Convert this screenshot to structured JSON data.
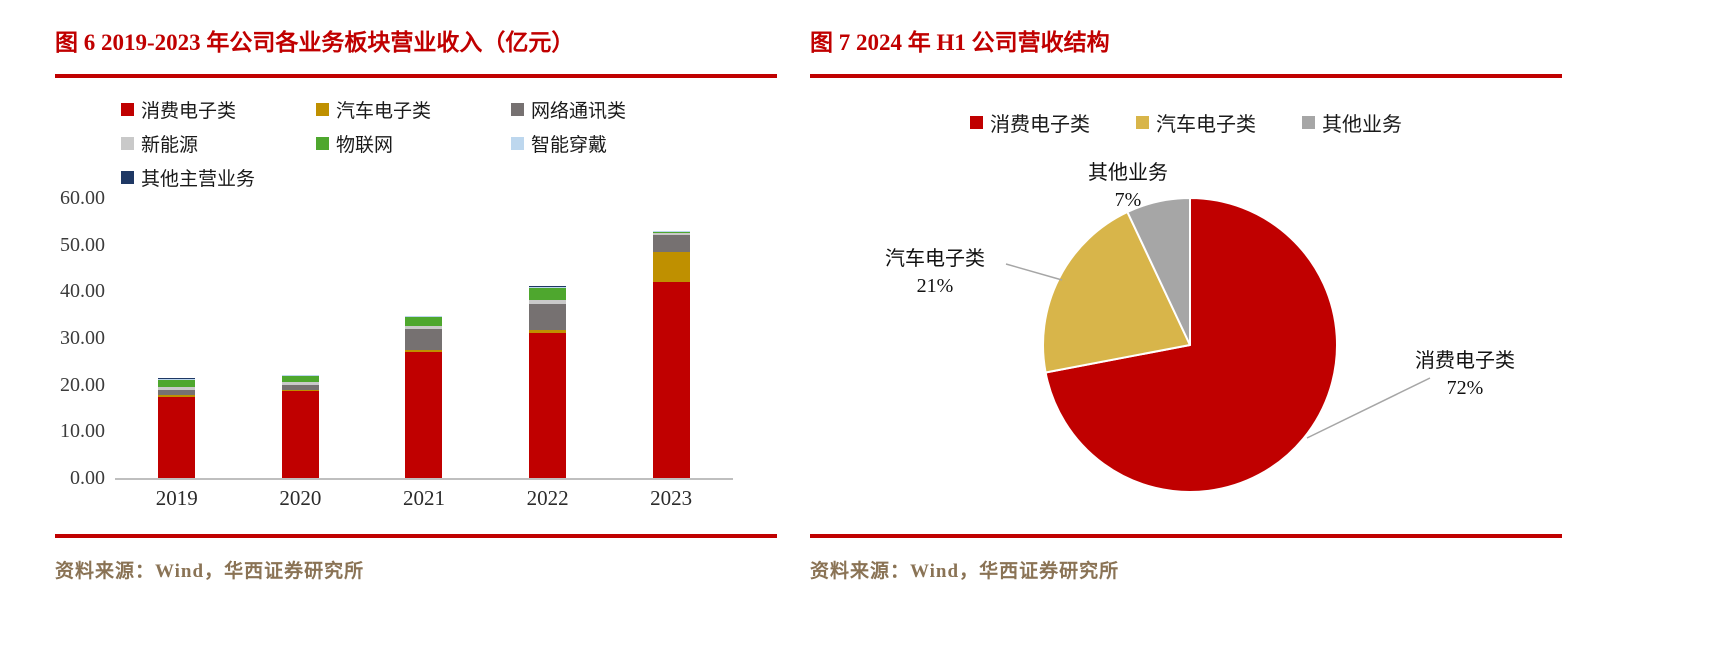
{
  "chart_data": [
    {
      "id": "fig6",
      "type": "bar",
      "stacked": true,
      "title": "图 6 2019-2023 年公司各业务板块营业收入（亿元）",
      "categories": [
        "2019",
        "2020",
        "2021",
        "2022",
        "2023"
      ],
      "series": [
        {
          "name": "消费电子类",
          "color": "#C00000",
          "values": [
            17.4,
            18.6,
            27.0,
            31.0,
            42.0
          ]
        },
        {
          "name": "汽车电子类",
          "color": "#BF9000",
          "values": [
            0.3,
            0.3,
            0.4,
            0.8,
            6.5
          ]
        },
        {
          "name": "网络通讯类",
          "color": "#767171",
          "values": [
            1.2,
            1.1,
            4.6,
            5.6,
            3.6
          ]
        },
        {
          "name": "新能源",
          "color": "#C9C9C9",
          "values": [
            0.6,
            0.5,
            0.6,
            0.7,
            0.3
          ]
        },
        {
          "name": "物联网",
          "color": "#4EA72E",
          "values": [
            1.5,
            1.3,
            1.9,
            2.6,
            0.4
          ]
        },
        {
          "name": "智能穿戴",
          "color": "#BDD7EE",
          "values": [
            0.3,
            0.2,
            0.2,
            0.3,
            0.1
          ]
        },
        {
          "name": "其他主营业务",
          "color": "#1F3864",
          "values": [
            0.1,
            0.1,
            0.1,
            0.2,
            0.1
          ]
        }
      ],
      "ylim": [
        0,
        60
      ],
      "ytick_step": 10,
      "ytick_labels": [
        "0.00",
        "10.00",
        "20.00",
        "30.00",
        "40.00",
        "50.00",
        "60.00"
      ],
      "grid": false,
      "legend_position": "top",
      "source": "资料来源：Wind，华西证券研究所"
    },
    {
      "id": "fig7",
      "type": "pie",
      "title": "图 7 2024 年 H1 公司营收结构",
      "slices": [
        {
          "name": "消费电子类",
          "percent": 72,
          "color": "#C00000"
        },
        {
          "name": "汽车电子类",
          "percent": 21,
          "color": "#D8B54A"
        },
        {
          "name": "其他业务",
          "percent": 7,
          "color": "#A6A6A6"
        }
      ],
      "start_angle_deg": -90,
      "direction": "clockwise",
      "legend_position": "top",
      "source": "资料来源：Wind，华西证券研究所"
    }
  ],
  "colors": {
    "accent_red": "#C00000",
    "rule": "#C00000",
    "source_text": "#8A7355",
    "axis_line": "#BFBFBF",
    "leader_line": "#A6A6A6"
  }
}
